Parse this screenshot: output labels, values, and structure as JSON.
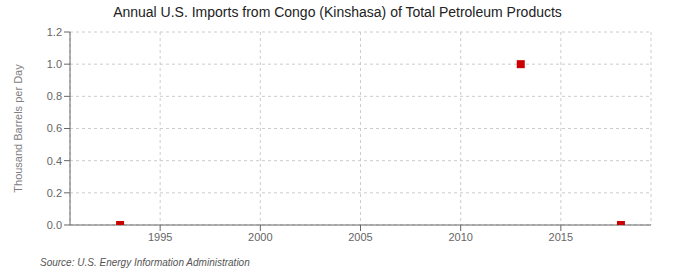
{
  "chart_data": {
    "type": "scatter",
    "title": "Annual U.S. Imports from Congo (Kinshasa) of Total Petroleum Products",
    "ylabel": "Thousand Barrels per Day",
    "annotations": [
      "Source: U.S. Energy Information Administration"
    ],
    "x": [
      1993,
      2013,
      2018
    ],
    "values": [
      0.0,
      1.0,
      0.0
    ],
    "color": "#cc0000",
    "marker": "square",
    "xlim": [
      1990.5,
      2019.5
    ],
    "xticks": [
      1995,
      2000,
      2005,
      2010,
      2015
    ],
    "ylim": [
      0.0,
      1.2
    ],
    "yticks": [
      {
        "value": 0.0,
        "label": "0.0"
      },
      0.2,
      0.4,
      0.6,
      0.8,
      {
        "value": 1.0,
        "label": "1.0"
      },
      1.2
    ],
    "grid": true
  }
}
